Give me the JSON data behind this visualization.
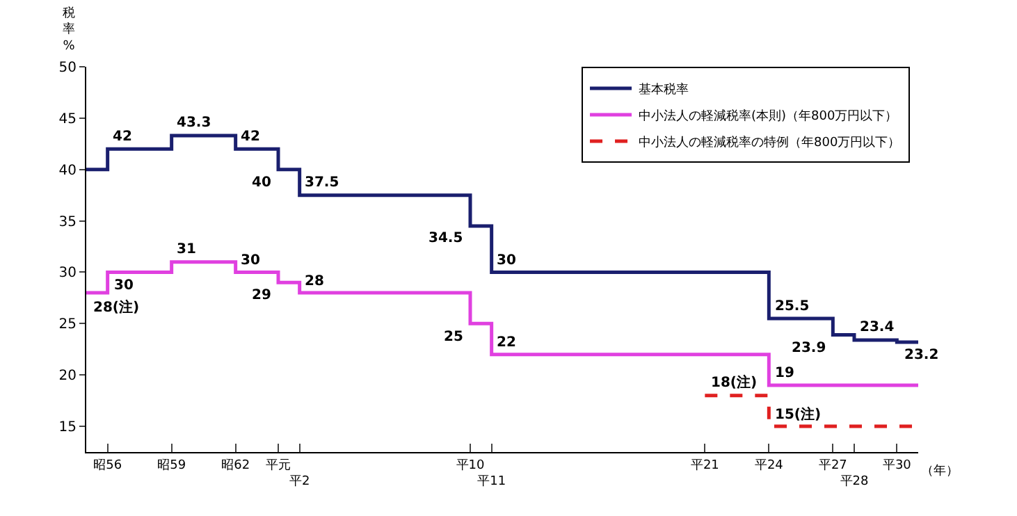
{
  "chart_data": {
    "type": "step",
    "ylabel": "税率%",
    "xlabel": "（年）",
    "categories": [
      null,
      "昭56",
      null,
      null,
      "昭59",
      null,
      null,
      "昭62",
      null,
      "平元",
      "平2",
      null,
      null,
      null,
      null,
      null,
      null,
      null,
      "平10",
      "平11",
      null,
      null,
      null,
      null,
      null,
      null,
      null,
      null,
      null,
      "平21",
      null,
      null,
      "平24",
      null,
      null,
      "平27",
      "平28",
      null,
      "平30",
      null
    ],
    "ylim": [
      12.5,
      50
    ],
    "yticks": [
      15,
      20,
      25,
      30,
      35,
      40,
      45,
      50
    ],
    "legend": "top right",
    "marker": "none",
    "series": [
      {
        "name": "基本税率",
        "color": "#1a1f6e",
        "line_style": "solid",
        "values": [
          40,
          42,
          42,
          42,
          43.3,
          43.3,
          43.3,
          42,
          42,
          40,
          37.5,
          37.5,
          37.5,
          37.5,
          37.5,
          37.5,
          37.5,
          37.5,
          34.5,
          30,
          30,
          30,
          30,
          30,
          30,
          30,
          30,
          30,
          30,
          30,
          30,
          30,
          25.5,
          25.5,
          25.5,
          23.9,
          23.4,
          23.4,
          23.2,
          23.2
        ],
        "value_labels": [
          null,
          "42",
          null,
          null,
          "43.3",
          null,
          null,
          "42",
          null,
          "40",
          "37.5",
          null,
          null,
          null,
          null,
          null,
          null,
          null,
          "34.5",
          "30",
          null,
          null,
          null,
          null,
          null,
          null,
          null,
          null,
          null,
          null,
          null,
          null,
          "25.5",
          null,
          null,
          "23.9",
          "23.4",
          null,
          "23.2",
          null
        ]
      },
      {
        "name": "中小法人の軽減税率(本則)（年800万円以下）",
        "color": "#e040e0",
        "line_style": "solid",
        "values": [
          28,
          30,
          30,
          30,
          31,
          31,
          31,
          30,
          30,
          29,
          28,
          28,
          28,
          28,
          28,
          28,
          28,
          28,
          25,
          22,
          22,
          22,
          22,
          22,
          22,
          22,
          22,
          22,
          22,
          22,
          22,
          22,
          19,
          19,
          19,
          19,
          19,
          19,
          19,
          19
        ],
        "value_labels": [
          "28(注)",
          "30",
          null,
          null,
          "31",
          null,
          null,
          "30",
          null,
          "29",
          "28",
          null,
          null,
          null,
          null,
          null,
          null,
          null,
          "25",
          "22",
          null,
          null,
          null,
          null,
          null,
          null,
          null,
          null,
          null,
          null,
          null,
          null,
          "19",
          null,
          null,
          null,
          null,
          null,
          null,
          null
        ]
      },
      {
        "name": "中小法人の軽減税率の特例（年800万円以下）",
        "color": "#e02020",
        "line_style": "dashed",
        "values": [
          null,
          null,
          null,
          null,
          null,
          null,
          null,
          null,
          null,
          null,
          null,
          null,
          null,
          null,
          null,
          null,
          null,
          null,
          null,
          null,
          null,
          null,
          null,
          null,
          null,
          null,
          null,
          null,
          null,
          18,
          18,
          18,
          15,
          15,
          15,
          15,
          15,
          15,
          15,
          15
        ],
        "value_labels": [
          null,
          null,
          null,
          null,
          null,
          null,
          null,
          null,
          null,
          null,
          null,
          null,
          null,
          null,
          null,
          null,
          null,
          null,
          null,
          null,
          null,
          null,
          null,
          null,
          null,
          null,
          null,
          null,
          null,
          "18(注)",
          null,
          null,
          "15(注)",
          null,
          null,
          null,
          null,
          null,
          null,
          null
        ]
      }
    ]
  }
}
